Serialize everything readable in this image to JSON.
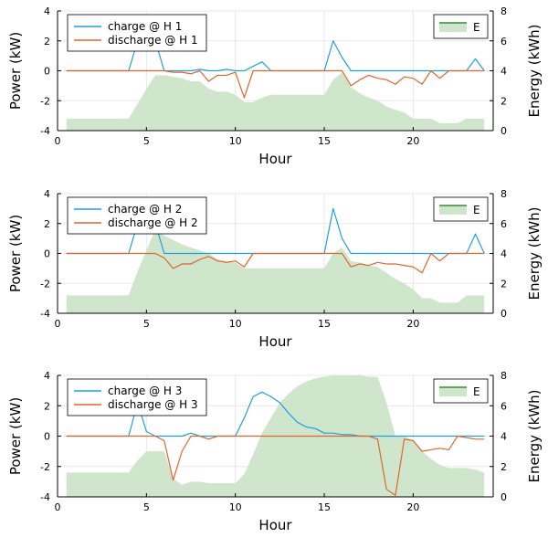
{
  "colors": {
    "charge": "#1f9fe0",
    "discharge": "#e0662b",
    "energy_fill": "#cfe5cc",
    "energy_line": "#3a8a3a",
    "grid": "#e8e8e8"
  },
  "chart_data": [
    {
      "type": "area",
      "xlabel": "Hour",
      "ylabel_left": "Power (kW)",
      "ylabel_right": "Energy (kWh)",
      "xlim": [
        0,
        24.5
      ],
      "ylim_left": [
        -4,
        4
      ],
      "ylim_right": [
        0,
        8
      ],
      "xticks": [
        "0",
        "5",
        "10",
        "15",
        "20"
      ],
      "yticks_left": [
        "-4",
        "-2",
        "0",
        "2",
        "4"
      ],
      "yticks_right": [
        "0",
        "2",
        "4",
        "6",
        "8"
      ],
      "grid": true,
      "legend_left": [
        "charge @ H 1",
        "discharge @ H 1"
      ],
      "legend_right": [
        "E"
      ],
      "x": [
        0.5,
        1,
        1.5,
        2,
        2.5,
        3,
        3.5,
        4,
        4.5,
        5,
        5.5,
        6,
        6.5,
        7,
        7.5,
        8,
        8.5,
        9,
        9.5,
        10,
        10.5,
        11,
        11.5,
        12,
        12.5,
        13,
        13.5,
        14,
        14.5,
        15,
        15.5,
        16,
        16.5,
        17,
        17.5,
        18,
        18.5,
        19,
        19.5,
        20,
        20.5,
        21,
        21.5,
        22,
        22.5,
        23,
        23.5,
        24
      ],
      "series": [
        {
          "name": "charge @ H 1",
          "axis": "left",
          "values": [
            0,
            0,
            0,
            0,
            0,
            0,
            0,
            0,
            2.0,
            2.0,
            2.0,
            0,
            0,
            0,
            0,
            0.1,
            0,
            0,
            0.1,
            0,
            0,
            0.3,
            0.6,
            0,
            0,
            0,
            0,
            0,
            0,
            0,
            2.0,
            0.9,
            0,
            0,
            0,
            0,
            0,
            0,
            0,
            0,
            0,
            0,
            0,
            0,
            0,
            0,
            0.8,
            0
          ]
        },
        {
          "name": "discharge @ H 1",
          "axis": "left",
          "values": [
            0,
            0,
            0,
            0,
            0,
            0,
            0,
            0,
            0,
            0,
            0,
            0,
            -0.1,
            -0.1,
            -0.2,
            0,
            -0.7,
            -0.3,
            -0.3,
            -0.1,
            -1.8,
            0,
            0,
            0,
            0,
            0,
            0,
            0,
            0,
            0,
            0,
            0,
            -1.0,
            -0.6,
            -0.3,
            -0.5,
            -0.6,
            -0.9,
            -0.4,
            -0.5,
            -0.9,
            0,
            -0.5,
            0,
            0,
            0,
            0,
            0
          ]
        },
        {
          "name": "E",
          "axis": "right",
          "values": [
            0.8,
            0.8,
            0.8,
            0.8,
            0.8,
            0.8,
            0.8,
            0.8,
            1.8,
            2.8,
            3.7,
            3.7,
            3.6,
            3.5,
            3.3,
            3.3,
            2.8,
            2.6,
            2.6,
            2.4,
            1.9,
            1.9,
            2.2,
            2.4,
            2.4,
            2.4,
            2.4,
            2.4,
            2.4,
            2.4,
            3.4,
            3.9,
            2.9,
            2.5,
            2.2,
            2.0,
            1.6,
            1.4,
            1.2,
            0.8,
            0.8,
            0.8,
            0.5,
            0.5,
            0.5,
            0.8,
            0.8,
            0.8
          ]
        }
      ]
    },
    {
      "type": "area",
      "xlabel": "Hour",
      "ylabel_left": "Power (kW)",
      "ylabel_right": "Energy (kWh)",
      "xlim": [
        0,
        24.5
      ],
      "ylim_left": [
        -4,
        4
      ],
      "ylim_right": [
        0,
        8
      ],
      "xticks": [
        "0",
        "5",
        "10",
        "15",
        "20"
      ],
      "yticks_left": [
        "-4",
        "-2",
        "0",
        "2",
        "4"
      ],
      "yticks_right": [
        "0",
        "2",
        "4",
        "6",
        "8"
      ],
      "grid": true,
      "legend_left": [
        "charge @ H 2",
        "discharge @ H 2"
      ],
      "legend_right": [
        "E"
      ],
      "x": [
        0.5,
        1,
        1.5,
        2,
        2.5,
        3,
        3.5,
        4,
        4.5,
        5,
        5.5,
        6,
        6.5,
        7,
        7.5,
        8,
        8.5,
        9,
        9.5,
        10,
        10.5,
        11,
        11.5,
        12,
        12.5,
        13,
        13.5,
        14,
        14.5,
        15,
        15.5,
        16,
        16.5,
        17,
        17.5,
        18,
        18.5,
        19,
        19.5,
        20,
        20.5,
        21,
        21.5,
        22,
        22.5,
        23,
        23.5,
        24
      ],
      "series": [
        {
          "name": "charge @ H 2",
          "axis": "left",
          "values": [
            0,
            0,
            0,
            0,
            0,
            0,
            0,
            0,
            2.0,
            2.0,
            2.0,
            0,
            0,
            0,
            0,
            0,
            0,
            0,
            0,
            0,
            0,
            0,
            0,
            0,
            0,
            0,
            0,
            0,
            0,
            0,
            3.0,
            1.0,
            0,
            0,
            0,
            0,
            0,
            0,
            0,
            0,
            0,
            0,
            0,
            0,
            0,
            0,
            1.3,
            0
          ]
        },
        {
          "name": "discharge @ H 2",
          "axis": "left",
          "values": [
            0,
            0,
            0,
            0,
            0,
            0,
            0,
            0,
            0,
            0,
            0,
            -0.3,
            -1.0,
            -0.7,
            -0.7,
            -0.4,
            -0.2,
            -0.5,
            -0.6,
            -0.5,
            -0.9,
            0,
            0,
            0,
            0,
            0,
            0,
            0,
            0,
            0,
            0,
            0,
            -0.9,
            -0.7,
            -0.8,
            -0.6,
            -0.7,
            -0.7,
            -0.8,
            -0.9,
            -1.3,
            0,
            -0.5,
            0,
            0,
            0,
            0,
            0
          ]
        },
        {
          "name": "E",
          "axis": "right",
          "values": [
            1.2,
            1.2,
            1.2,
            1.2,
            1.2,
            1.2,
            1.2,
            1.2,
            2.8,
            4.2,
            5.6,
            5.2,
            4.9,
            4.6,
            4.4,
            4.2,
            4.0,
            3.6,
            3.5,
            3.4,
            3.0,
            3.0,
            3.0,
            3.0,
            3.0,
            3.0,
            3.0,
            3.0,
            3.0,
            3.0,
            4.0,
            4.4,
            3.5,
            3.4,
            3.2,
            3.1,
            2.7,
            2.3,
            2.0,
            1.6,
            1.0,
            1.0,
            0.7,
            0.7,
            0.7,
            1.2,
            1.2,
            1.2
          ]
        }
      ]
    },
    {
      "type": "area",
      "xlabel": "Hour",
      "ylabel_left": "Power (kW)",
      "ylabel_right": "Energy (kWh)",
      "xlim": [
        0,
        24.5
      ],
      "ylim_left": [
        -4,
        4
      ],
      "ylim_right": [
        0,
        8
      ],
      "xticks": [
        "0",
        "5",
        "10",
        "15",
        "20"
      ],
      "yticks_left": [
        "-4",
        "-2",
        "0",
        "2",
        "4"
      ],
      "yticks_right": [
        "0",
        "2",
        "4",
        "6",
        "8"
      ],
      "grid": true,
      "legend_left": [
        "charge @ H 3",
        "discharge @ H 3"
      ],
      "legend_right": [
        "E"
      ],
      "x": [
        0.5,
        1,
        1.5,
        2,
        2.5,
        3,
        3.5,
        4,
        4.5,
        5,
        5.5,
        6,
        6.5,
        7,
        7.5,
        8,
        8.5,
        9,
        9.5,
        10,
        10.5,
        11,
        11.5,
        12,
        12.5,
        13,
        13.5,
        14,
        14.5,
        15,
        15.5,
        16,
        16.5,
        17,
        17.5,
        18,
        18.5,
        19,
        19.5,
        20,
        20.5,
        21,
        21.5,
        22,
        22.5,
        23,
        23.5,
        24
      ],
      "series": [
        {
          "name": "charge @ H 3",
          "axis": "left",
          "values": [
            0,
            0,
            0,
            0,
            0,
            0,
            0,
            0,
            2.2,
            0.3,
            0,
            0,
            0,
            0,
            0.2,
            0,
            0,
            0,
            0,
            0,
            1.2,
            2.6,
            2.9,
            2.6,
            2.2,
            1.5,
            0.9,
            0.6,
            0.5,
            0.2,
            0.2,
            0.1,
            0.1,
            0,
            0,
            0,
            0,
            0,
            0,
            0,
            0,
            0,
            0,
            0,
            0,
            0,
            0,
            0
          ]
        },
        {
          "name": "discharge @ H 3",
          "axis": "left",
          "values": [
            0,
            0,
            0,
            0,
            0,
            0,
            0,
            0,
            0,
            0,
            0,
            -0.3,
            -2.9,
            -1.0,
            0,
            0,
            -0.2,
            0,
            0,
            0,
            0,
            0,
            0,
            0,
            0,
            0,
            0,
            0,
            0,
            0,
            0,
            0,
            0,
            0,
            0,
            -0.2,
            -3.5,
            -3.9,
            -0.2,
            -0.3,
            -1.0,
            -0.9,
            -0.8,
            -0.9,
            0,
            -0.1,
            -0.2,
            -0.2
          ]
        },
        {
          "name": "E",
          "axis": "right",
          "values": [
            1.6,
            1.6,
            1.6,
            1.6,
            1.6,
            1.6,
            1.6,
            1.6,
            2.4,
            3.0,
            3.0,
            3.0,
            1.2,
            0.8,
            1.0,
            1.0,
            0.9,
            0.9,
            0.9,
            0.9,
            1.5,
            2.8,
            4.2,
            5.2,
            6.2,
            6.8,
            7.3,
            7.6,
            7.8,
            7.9,
            8.0,
            8.0,
            8.0,
            8.0,
            7.9,
            7.9,
            6.2,
            4.0,
            4.0,
            3.7,
            3.0,
            2.5,
            2.1,
            1.9,
            1.9,
            1.9,
            1.8,
            1.6
          ]
        }
      ]
    }
  ]
}
